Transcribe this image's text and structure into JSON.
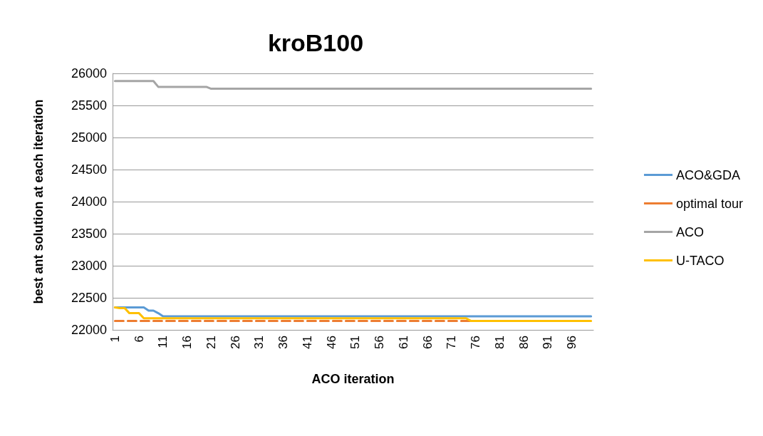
{
  "chart_data": {
    "type": "line",
    "title": "kroB100",
    "xlabel": "ACO iteration",
    "ylabel": "best ant solution at each iteration",
    "categories": [
      "1",
      null,
      null,
      null,
      null,
      "6",
      null,
      null,
      null,
      null,
      "11",
      null,
      null,
      null,
      null,
      "16",
      null,
      null,
      null,
      null,
      "21",
      null,
      null,
      null,
      null,
      "26",
      null,
      null,
      null,
      null,
      "31",
      null,
      null,
      null,
      null,
      "36",
      null,
      null,
      null,
      null,
      "41",
      null,
      null,
      null,
      null,
      "46",
      null,
      null,
      null,
      null,
      "51",
      null,
      null,
      null,
      null,
      "56",
      null,
      null,
      null,
      null,
      "61",
      null,
      null,
      null,
      null,
      "66",
      null,
      null,
      null,
      null,
      "71",
      null,
      null,
      null,
      null,
      "76",
      null,
      null,
      null,
      null,
      "81",
      null,
      null,
      null,
      null,
      "86",
      null,
      null,
      null,
      null,
      "91",
      null,
      null,
      null,
      null,
      "96",
      null,
      null,
      null,
      null
    ],
    "series": [
      {
        "name": "ACO&GDA",
        "color": "#5b9bd5",
        "line_style": "solid",
        "values": [
          22350,
          22350,
          22350,
          22350,
          22350,
          22350,
          22350,
          22300,
          22300,
          22260,
          22210,
          22210,
          22210,
          22210,
          22210,
          22210,
          22210,
          22210,
          22210,
          22210,
          22210,
          22210,
          22210,
          22210,
          22210,
          22210,
          22210,
          22210,
          22210,
          22210,
          22210,
          22210,
          22210,
          22210,
          22210,
          22210,
          22210,
          22210,
          22210,
          22210,
          22210,
          22210,
          22210,
          22210,
          22210,
          22210,
          22210,
          22210,
          22210,
          22210,
          22210,
          22210,
          22210,
          22210,
          22210,
          22210,
          22210,
          22210,
          22210,
          22210,
          22210,
          22210,
          22210,
          22210,
          22210,
          22210,
          22210,
          22210,
          22210,
          22210,
          22210,
          22210,
          22210,
          22210,
          22210,
          22210,
          22210,
          22210,
          22210,
          22210,
          22210,
          22210,
          22210,
          22210,
          22210,
          22210,
          22210,
          22210,
          22210,
          22210,
          22210,
          22210,
          22210,
          22210,
          22210,
          22210,
          22210,
          22210,
          22210,
          22210
        ]
      },
      {
        "name": "optimal tour",
        "color": "#ed7d31",
        "line_style": "dashed",
        "values": [
          22140,
          22140,
          22140,
          22140,
          22140,
          22140,
          22140,
          22140,
          22140,
          22140,
          22140,
          22140,
          22140,
          22140,
          22140,
          22140,
          22140,
          22140,
          22140,
          22140,
          22140,
          22140,
          22140,
          22140,
          22140,
          22140,
          22140,
          22140,
          22140,
          22140,
          22140,
          22140,
          22140,
          22140,
          22140,
          22140,
          22140,
          22140,
          22140,
          22140,
          22140,
          22140,
          22140,
          22140,
          22140,
          22140,
          22140,
          22140,
          22140,
          22140,
          22140,
          22140,
          22140,
          22140,
          22140,
          22140,
          22140,
          22140,
          22140,
          22140,
          22140,
          22140,
          22140,
          22140,
          22140,
          22140,
          22140,
          22140,
          22140,
          22140,
          22140,
          22140,
          22140,
          22140,
          22140,
          null,
          null,
          null,
          null,
          null,
          null,
          null,
          null,
          null,
          null,
          null,
          null,
          null,
          null,
          null,
          null,
          null,
          null,
          null,
          null,
          null,
          null,
          null,
          null,
          null
        ]
      },
      {
        "name": "ACO",
        "color": "#a5a5a5",
        "line_style": "solid",
        "values": [
          25880,
          25880,
          25880,
          25880,
          25880,
          25880,
          25880,
          25880,
          25880,
          25790,
          25790,
          25790,
          25790,
          25790,
          25790,
          25790,
          25790,
          25790,
          25790,
          25790,
          25760,
          25760,
          25760,
          25760,
          25760,
          25760,
          25760,
          25760,
          25760,
          25760,
          25760,
          25760,
          25760,
          25760,
          25760,
          25760,
          25760,
          25760,
          25760,
          25760,
          25760,
          25760,
          25760,
          25760,
          25760,
          25760,
          25760,
          25760,
          25760,
          25760,
          25760,
          25760,
          25760,
          25760,
          25760,
          25760,
          25760,
          25760,
          25760,
          25760,
          25760,
          25760,
          25760,
          25760,
          25760,
          25760,
          25760,
          25760,
          25760,
          25760,
          25760,
          25760,
          25760,
          25760,
          25760,
          25760,
          25760,
          25760,
          25760,
          25760,
          25760,
          25760,
          25760,
          25760,
          25760,
          25760,
          25760,
          25760,
          25760,
          25760,
          25760,
          25760,
          25760,
          25760,
          25760,
          25760,
          25760,
          25760,
          25760,
          25760
        ]
      },
      {
        "name": "U-TACO",
        "color": "#ffc000",
        "line_style": "solid",
        "values": [
          22350,
          22340,
          22340,
          22260,
          22260,
          22260,
          22180,
          22180,
          22180,
          22180,
          22180,
          22180,
          22180,
          22180,
          22180,
          22180,
          22180,
          22180,
          22180,
          22180,
          22180,
          22180,
          22180,
          22180,
          22180,
          22180,
          22180,
          22180,
          22180,
          22180,
          22180,
          22180,
          22180,
          22180,
          22180,
          22180,
          22180,
          22180,
          22180,
          22180,
          22180,
          22180,
          22180,
          22180,
          22180,
          22180,
          22180,
          22180,
          22180,
          22180,
          22180,
          22180,
          22180,
          22180,
          22180,
          22180,
          22180,
          22180,
          22180,
          22180,
          22180,
          22180,
          22180,
          22180,
          22180,
          22180,
          22180,
          22180,
          22180,
          22180,
          22180,
          22180,
          22180,
          22180,
          22140,
          22140,
          22140,
          22140,
          22140,
          22140,
          22140,
          22140,
          22140,
          22140,
          22140,
          22140,
          22140,
          22140,
          22140,
          22140,
          22140,
          22140,
          22140,
          22140,
          22140,
          22140,
          22140,
          22140,
          22140,
          22140
        ]
      }
    ],
    "ylim": [
      22000,
      26000
    ],
    "yticks": [
      22000,
      22500,
      23000,
      23500,
      24000,
      24500,
      25000,
      25500,
      26000
    ],
    "grid": "y",
    "legend": "right",
    "marker": "none"
  }
}
